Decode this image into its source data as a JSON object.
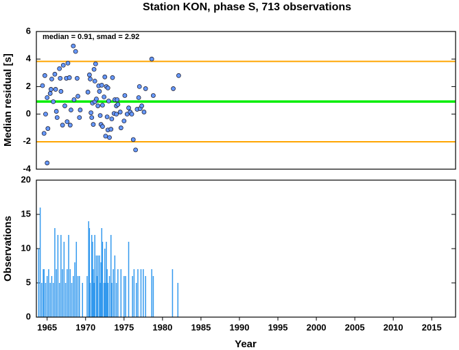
{
  "chart_data": [
    {
      "type": "scatter",
      "title": "Station KON, phase S, 713 observations",
      "ylabel": "Median residual [s]",
      "annotation": "median = 0.91, smad = 2.92",
      "xlim": [
        1963.6,
        2018.1
      ],
      "ylim": [
        -4,
        6
      ],
      "yticks": [
        -4,
        -2,
        0,
        2,
        4,
        6
      ],
      "color": "#6699ff",
      "hlines": [
        {
          "value": 0.91,
          "color": "#00ee00"
        },
        {
          "value": 3.83,
          "color": "#ffa500"
        },
        {
          "value": -2.01,
          "color": "#ffa500"
        }
      ],
      "x": [
        1964.4,
        1964.7,
        1964.6,
        1964.8,
        1965.0,
        1965.0,
        1965.1,
        1965.4,
        1965.5,
        1965.6,
        1965.8,
        1966.0,
        1966.1,
        1966.2,
        1966.3,
        1966.6,
        1966.7,
        1966.8,
        1967.0,
        1967.1,
        1967.3,
        1967.5,
        1967.6,
        1967.7,
        1967.9,
        1968.0,
        1968.1,
        1968.4,
        1968.7,
        1968.5,
        1968.9,
        1969.0,
        1969.2,
        1969.3,
        1970.3,
        1970.5,
        1970.6,
        1970.7,
        1970.8,
        1970.9,
        1971.0,
        1971.1,
        1971.2,
        1971.2,
        1971.3,
        1971.4,
        1971.6,
        1971.7,
        1971.8,
        1971.9,
        1972.0,
        1972.1,
        1972.2,
        1972.2,
        1972.4,
        1972.5,
        1972.6,
        1972.7,
        1972.8,
        1972.9,
        1972.9,
        1973.0,
        1973.1,
        1973.3,
        1973.4,
        1973.5,
        1973.7,
        1973.8,
        1974.0,
        1974.0,
        1974.1,
        1974.2,
        1974.5,
        1974.6,
        1975.0,
        1975.1,
        1975.4,
        1975.6,
        1975.8,
        1976.0,
        1976.2,
        1976.5,
        1976.7,
        1976.9,
        1977.0,
        1977.1,
        1977.3,
        1977.6,
        1977.8,
        1978.6,
        1978.8,
        1981.4,
        1982.1
      ],
      "values": [
        2.07,
        2.8,
        -1.4,
        0.0,
        -3.55,
        1.2,
        -1.05,
        1.5,
        1.8,
        2.55,
        0.9,
        2.9,
        1.8,
        0.2,
        -0.25,
        3.3,
        2.6,
        1.65,
        -0.8,
        3.55,
        0.6,
        2.6,
        -0.55,
        3.7,
        2.65,
        -0.8,
        0.3,
        4.95,
        4.55,
        1.05,
        2.6,
        1.3,
        -0.25,
        0.3,
        1.6,
        2.85,
        2.55,
        0.1,
        -0.25,
        0.8,
        -0.75,
        3.25,
        2.4,
        0.9,
        3.65,
        1.1,
        0.6,
        2.05,
        1.65,
        -0.1,
        -0.75,
        2.1,
        0.65,
        -0.9,
        1.25,
        2.7,
        -1.6,
        2.0,
        -0.2,
        -1.15,
        1.9,
        0.95,
        -1.7,
        -1.1,
        -0.35,
        2.65,
        0.05,
        1.05,
        0.0,
        0.6,
        1.05,
        0.7,
        0.15,
        -1.0,
        -0.5,
        1.35,
        0.0,
        0.45,
        0.15,
        0.0,
        -1.85,
        -2.6,
        0.35,
        1.2,
        2.0,
        0.4,
        0.6,
        0.15,
        1.85,
        4.0,
        1.35,
        1.85,
        2.8
      ]
    },
    {
      "type": "bar",
      "ylabel": "Observations",
      "xlabel": "Year",
      "xlim": [
        1963.6,
        2018.1
      ],
      "xticks": [
        1965,
        1970,
        1975,
        1980,
        1985,
        1990,
        1995,
        2000,
        2005,
        2010,
        2015
      ],
      "ylim": [
        0,
        20
      ],
      "yticks": [
        0,
        5,
        10,
        15,
        20
      ],
      "color": "#3399ee",
      "x": [
        1963.9,
        1964.1,
        1964.3,
        1964.5,
        1964.6,
        1964.8,
        1965.0,
        1965.2,
        1965.4,
        1965.6,
        1965.8,
        1966.0,
        1966.2,
        1966.4,
        1966.6,
        1966.8,
        1967.0,
        1967.2,
        1967.4,
        1967.6,
        1967.8,
        1968.0,
        1968.2,
        1968.4,
        1968.6,
        1968.8,
        1969.0,
        1969.2,
        1969.6,
        1970.2,
        1970.4,
        1970.5,
        1970.6,
        1970.8,
        1970.9,
        1971.0,
        1971.1,
        1971.2,
        1971.4,
        1971.5,
        1971.6,
        1971.8,
        1971.9,
        1972.0,
        1972.1,
        1972.2,
        1972.4,
        1972.5,
        1972.6,
        1972.7,
        1972.8,
        1972.9,
        1973.1,
        1973.3,
        1973.4,
        1973.6,
        1973.8,
        1974.0,
        1974.2,
        1974.6,
        1975.0,
        1975.2,
        1975.6,
        1976.1,
        1976.3,
        1976.6,
        1976.8,
        1977.2,
        1977.5,
        1977.8,
        1978.6,
        1978.8,
        1981.3,
        1982.0
      ],
      "values": [
        10,
        16,
        5,
        7,
        7,
        5,
        6,
        7,
        5,
        6,
        5,
        13,
        7,
        12,
        5,
        12,
        7,
        11,
        5,
        7,
        12,
        7,
        5,
        6,
        8,
        11,
        6,
        6,
        5,
        6,
        14,
        13,
        5,
        12,
        11,
        7,
        5,
        12,
        9,
        6,
        9,
        9,
        5,
        8,
        13,
        11,
        5,
        10,
        5,
        11,
        7,
        5,
        6,
        12,
        5,
        7,
        9,
        5,
        7,
        7,
        6,
        6,
        11,
        6,
        7,
        5,
        7,
        7,
        7,
        6,
        7,
        6,
        7,
        5
      ]
    }
  ]
}
